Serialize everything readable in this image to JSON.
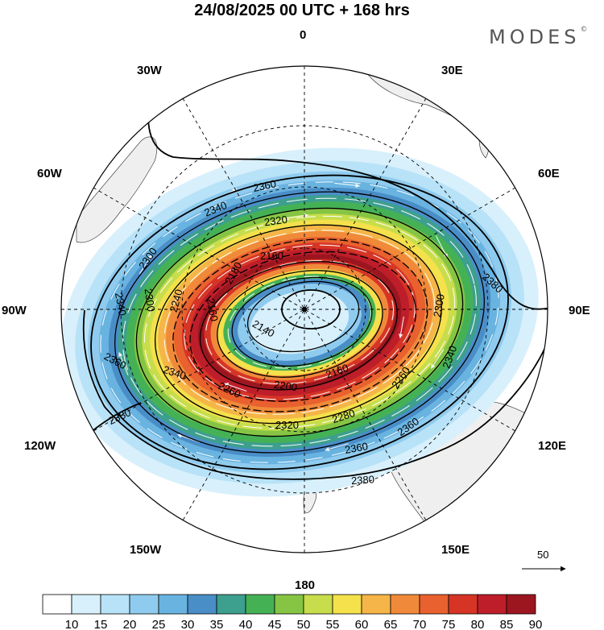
{
  "title": "24/08/2025  00 UTC  + 168 hrs",
  "brand": "MODES",
  "brand_mark": "©",
  "lon_labels": [
    "0",
    "30E",
    "60E",
    "90E",
    "120E",
    "150E",
    "180",
    "150W",
    "120W",
    "90W",
    "60W",
    "30W"
  ],
  "contour_labels": [
    "2360",
    "2340",
    "2320",
    "2300",
    "2280",
    "2260",
    "2240",
    "2200",
    "2180",
    "2160",
    "2140",
    "2380"
  ],
  "vector_reference": "50",
  "colorbar": {
    "ticks": [
      "10",
      "15",
      "20",
      "25",
      "30",
      "35",
      "40",
      "45",
      "50",
      "55",
      "60",
      "65",
      "70",
      "75",
      "80",
      "85",
      "90"
    ],
    "colors": [
      "#ffffff",
      "#d8f0fb",
      "#b8e2f7",
      "#8fcbee",
      "#69b3e0",
      "#4a8ec8",
      "#3d9f8e",
      "#45b155",
      "#86c544",
      "#c7dd4c",
      "#f4e14b",
      "#f5b548",
      "#f08a3a",
      "#e8612e",
      "#d63526",
      "#bd1e2a",
      "#9c1620"
    ]
  },
  "colors": {
    "land": "#efefef",
    "coast": "#444444"
  }
}
